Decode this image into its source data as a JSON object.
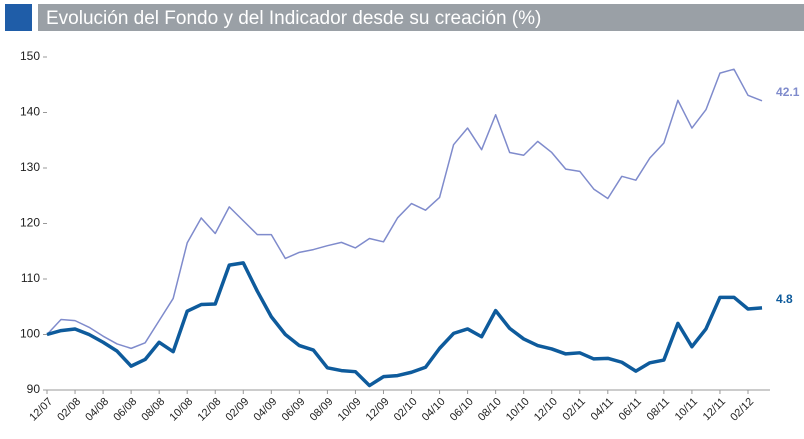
{
  "chart_data": {
    "type": "line",
    "title": "Evolución del Fondo y del Indicador desde su creación (%)",
    "categories": [
      "12/07",
      null,
      "02/08",
      null,
      "04/08",
      null,
      "06/08",
      null,
      "08/08",
      null,
      "10/08",
      null,
      "12/08",
      null,
      "02/09",
      null,
      "04/09",
      null,
      "06/09",
      null,
      "08/09",
      null,
      "10/09",
      null,
      "12/09",
      null,
      "02/10",
      null,
      "04/10",
      null,
      "06/10",
      null,
      "08/10",
      null,
      "10/10",
      null,
      "12/10",
      null,
      "02/11",
      null,
      "04/11",
      null,
      "06/11",
      null,
      "08/11",
      null,
      "10/11",
      null,
      "12/11",
      null,
      "02/12",
      null
    ],
    "series": [
      {
        "color": "#7f8bcc",
        "width": 1.5,
        "end_label": "42.1",
        "values": [
          100,
          102.7,
          102.5,
          101.3,
          99.7,
          98.3,
          97.5,
          98.5,
          102.5,
          106.5,
          116.5,
          121,
          118.2,
          123,
          120.5,
          118,
          118,
          113.7,
          114.8,
          115.3,
          116,
          116.6,
          115.6,
          117.3,
          116.7,
          121,
          123.6,
          122.4,
          124.7,
          134.2,
          137.2,
          133.3,
          139.6,
          132.8,
          132.3,
          134.8,
          132.8,
          129.8,
          129.4,
          126.2,
          124.5,
          128.5,
          127.8,
          131.8,
          134.5,
          142.2,
          137.2,
          140.5,
          147.1,
          147.8,
          143.1,
          142.1
        ]
      },
      {
        "color": "#0e5b9c",
        "width": 3.5,
        "end_label": "4.8",
        "values": [
          100,
          100.7,
          101,
          100,
          98.6,
          97,
          94.3,
          95.5,
          98.6,
          96.9,
          104.2,
          105.4,
          105.5,
          112.5,
          112.9,
          107.8,
          103.2,
          100,
          98,
          97.2,
          94,
          93.5,
          93.3,
          90.8,
          92.4,
          92.6,
          93.2,
          94.1,
          97.5,
          100.2,
          101,
          99.6,
          104.3,
          101.1,
          99.2,
          98,
          97.4,
          96.5,
          96.7,
          95.6,
          95.7,
          95,
          93.4,
          94.9,
          95.4,
          102,
          97.8,
          101,
          106.7,
          106.7,
          104.6,
          104.8
        ]
      }
    ],
    "ylim": [
      90,
      150
    ],
    "yticks": [
      90,
      100,
      110,
      120,
      130,
      140,
      150
    ]
  }
}
